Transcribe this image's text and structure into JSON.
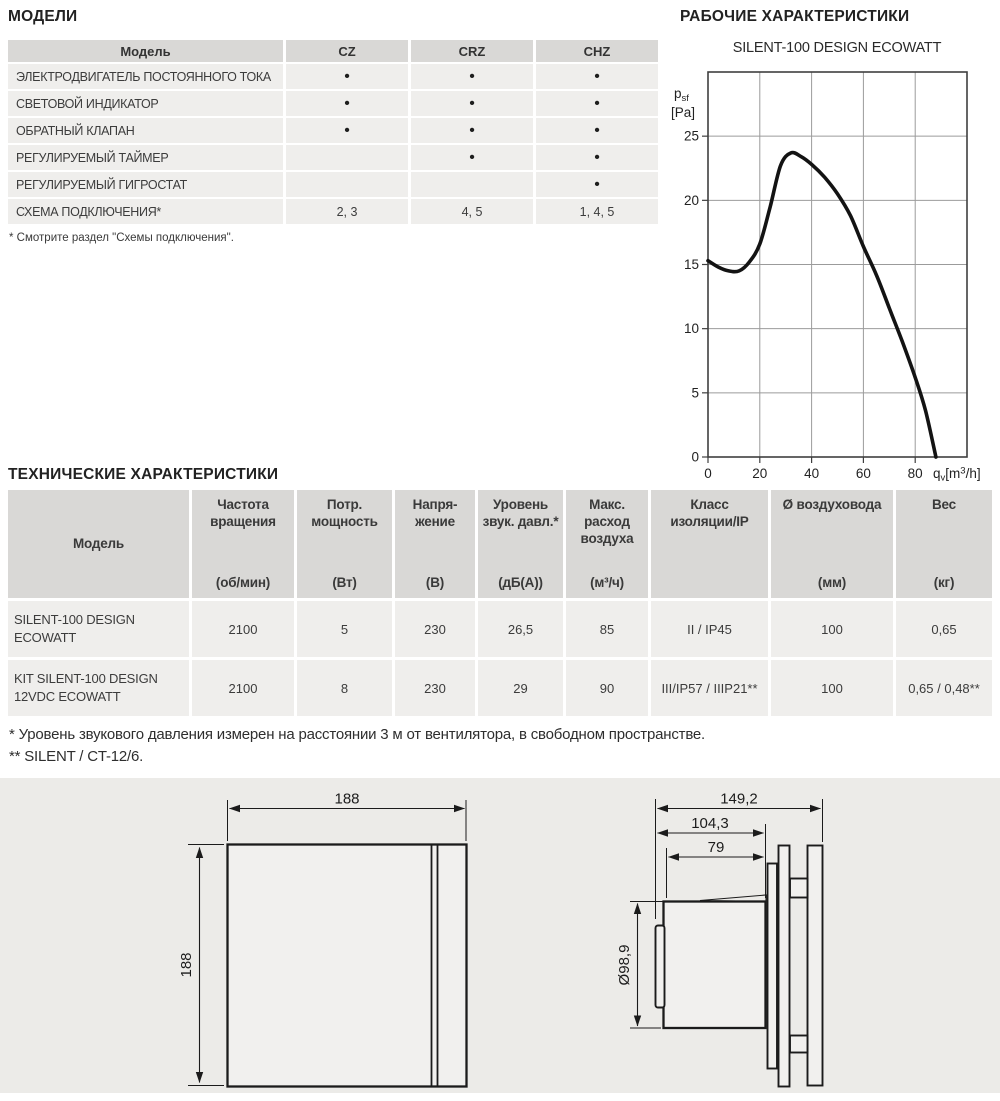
{
  "models": {
    "heading": "МОДЕЛИ",
    "columns": [
      "Модель",
      "CZ",
      "CRZ",
      "CHZ"
    ],
    "rows": [
      {
        "label": "ЭЛЕКТРОДВИГАТЕЛЬ ПОСТОЯННОГО ТОКА",
        "cz": "•",
        "crz": "•",
        "chz": "•"
      },
      {
        "label": "СВЕТОВОЙ ИНДИКАТОР",
        "cz": "•",
        "crz": "•",
        "chz": "•"
      },
      {
        "label": "ОБРАТНЫЙ КЛАПАН",
        "cz": "•",
        "crz": "•",
        "chz": "•"
      },
      {
        "label": "РЕГУЛИРУЕМЫЙ ТАЙМЕР",
        "cz": "",
        "crz": "•",
        "chz": "•"
      },
      {
        "label": "РЕГУЛИРУЕМЫЙ ГИГРОСТАТ",
        "cz": "",
        "crz": "",
        "chz": "•"
      },
      {
        "label": "СХЕМА ПОДКЛЮЧЕНИЯ*",
        "cz": "2, 3",
        "crz": "4, 5",
        "chz": "1, 4, 5"
      }
    ],
    "footnote": "* Смотрите раздел \"Схемы подключения\"."
  },
  "performance": {
    "heading": "РАБОЧИЕ ХАРАКТЕРИСТИКИ",
    "chart_title": "SILENT-100 DESIGN ECOWATT",
    "y_axis": {
      "symbol": "p",
      "sub": "sf",
      "unit": "[Pa]"
    },
    "x_axis": {
      "symbol": "q",
      "sub": "v",
      "unit_open": "[m",
      "sup": "3",
      "unit_close": "/h]"
    }
  },
  "chart_data": {
    "type": "line",
    "title": "SILENT-100 DESIGN ECOWATT",
    "xlabel": "qv [m³/h]",
    "ylabel": "psf [Pa]",
    "xlim": [
      0,
      100
    ],
    "ylim": [
      0,
      30
    ],
    "x_ticks": [
      0,
      20,
      40,
      60,
      80
    ],
    "y_ticks": [
      0,
      5,
      10,
      15,
      20,
      25
    ],
    "grid": true,
    "legend": "none",
    "curve": [
      [
        0,
        15.3
      ],
      [
        4,
        14.8
      ],
      [
        8,
        14.5
      ],
      [
        12,
        14.5
      ],
      [
        16,
        15.2
      ],
      [
        20,
        16.6
      ],
      [
        24,
        19.5
      ],
      [
        28,
        22.7
      ],
      [
        32,
        23.7
      ],
      [
        36,
        23.4
      ],
      [
        40,
        22.8
      ],
      [
        45,
        21.8
      ],
      [
        50,
        20.5
      ],
      [
        55,
        18.8
      ],
      [
        60,
        16.4
      ],
      [
        65,
        14.2
      ],
      [
        70,
        11.6
      ],
      [
        75,
        9.0
      ],
      [
        80,
        6.2
      ],
      [
        84,
        3.6
      ],
      [
        88,
        0
      ]
    ]
  },
  "tech": {
    "heading": "ТЕХНИЧЕСКИЕ ХАРАКТЕРИСТИКИ",
    "columns": [
      {
        "label": "Модель",
        "unit": ""
      },
      {
        "label": "Частота вращения",
        "unit": "(об/мин)"
      },
      {
        "label": "Потр. мощность",
        "unit": "(Вт)"
      },
      {
        "label": "Напря-жение",
        "unit": "(В)"
      },
      {
        "label": "Уровень звук. давл.*",
        "unit": "(дБ(А))"
      },
      {
        "label": "Макс. расход воздуха",
        "unit": "(м³/ч)"
      },
      {
        "label": "Класс изоляции/IP",
        "unit": ""
      },
      {
        "label": "Ø воздуховода",
        "unit": "(мм)"
      },
      {
        "label": "Вес",
        "unit": "(кг)"
      }
    ],
    "rows": [
      {
        "model": "SILENT-100 DESIGN ECOWATT",
        "rpm": "2100",
        "power": "5",
        "voltage": "230",
        "noise": "26,5",
        "airflow": "85",
        "insulation": "II / IP45",
        "duct": "100",
        "weight": "0,65"
      },
      {
        "model": "KIT SILENT-100 DESIGN 12VDC ECOWATT",
        "rpm": "2100",
        "power": "8",
        "voltage": "230",
        "noise": "29",
        "airflow": "90",
        "insulation": "III/IP57 / IIIP21**",
        "duct": "100",
        "weight": "0,65 / 0,48**"
      }
    ],
    "footnote1": "* Уровень звукового давления измерен на расстоянии 3 м от вентилятора, в свободном пространстве.",
    "footnote2": "** SILENT / CT-12/6."
  },
  "drawings": {
    "front_view": {
      "width": "188",
      "height": "188"
    },
    "side_view": {
      "overall": "149,2",
      "depth_to_plate": "104,3",
      "duct_length": "79",
      "diameter": "Ø98,9"
    }
  }
}
